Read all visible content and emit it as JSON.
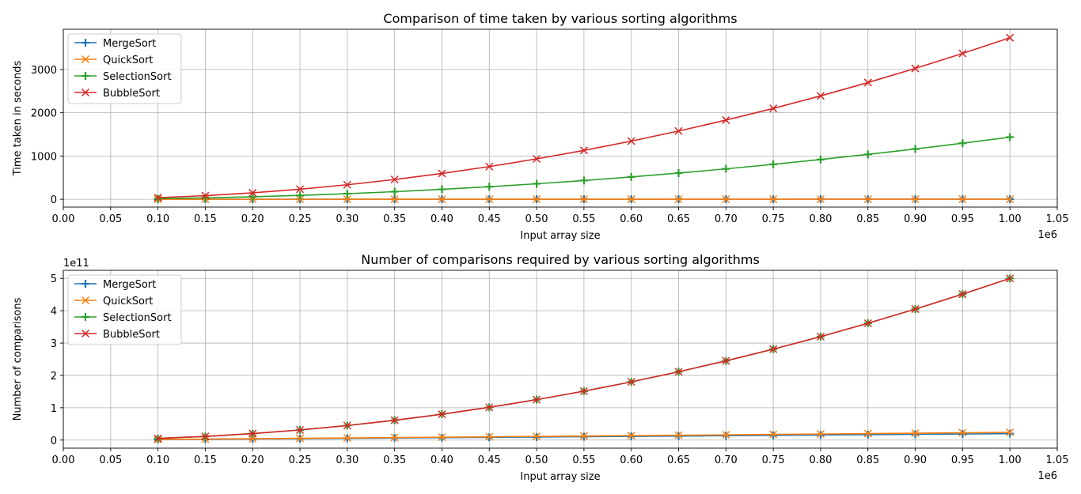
{
  "colors": {
    "MergeSort": "#1f77b4",
    "QuickSort": "#ff7f0e",
    "SelectionSort": "#2ca02c",
    "BubbleSort": "#d62728",
    "grid": "#b0b0b0"
  },
  "chart_data": [
    {
      "type": "line",
      "title": "Comparison of time taken by various sorting algorithms",
      "xlabel": "Input array size",
      "ylabel": "Time taken in seconds",
      "x_offset_label": "1e6",
      "y_offset_label": "",
      "xlim": [
        0,
        1050000
      ],
      "ylim": [
        -180,
        3930
      ],
      "xticks": [
        0,
        50000,
        100000,
        150000,
        200000,
        250000,
        300000,
        350000,
        400000,
        450000,
        500000,
        550000,
        600000,
        650000,
        700000,
        750000,
        800000,
        850000,
        900000,
        950000,
        1000000,
        1050000
      ],
      "xtick_labels": [
        "0.00",
        "0.05",
        "0.10",
        "0.15",
        "0.20",
        "0.25",
        "0.30",
        "0.35",
        "0.40",
        "0.45",
        "0.50",
        "0.55",
        "0.60",
        "0.65",
        "0.70",
        "0.75",
        "0.80",
        "0.85",
        "0.90",
        "0.95",
        "1.00",
        "1.05"
      ],
      "yticks": [
        0,
        1000,
        2000,
        3000
      ],
      "ytick_labels": [
        "0",
        "1000",
        "2000",
        "3000"
      ],
      "grid": true,
      "legend_position": "top-left",
      "x": [
        100000,
        150000,
        200000,
        250000,
        300000,
        350000,
        400000,
        450000,
        500000,
        550000,
        600000,
        650000,
        700000,
        750000,
        800000,
        850000,
        900000,
        950000,
        1000000
      ],
      "series": [
        {
          "name": "MergeSort",
          "marker": "plus",
          "values": [
            0.3,
            0.5,
            0.7,
            0.9,
            1.1,
            1.3,
            1.5,
            1.7,
            1.9,
            2.1,
            2.3,
            2.5,
            2.7,
            2.9,
            3.1,
            3.3,
            3.5,
            3.7,
            3.9
          ]
        },
        {
          "name": "QuickSort",
          "marker": "x",
          "values": [
            0.2,
            0.3,
            0.4,
            0.5,
            0.6,
            0.7,
            0.8,
            0.9,
            1.0,
            1.1,
            1.2,
            1.3,
            1.4,
            1.5,
            1.6,
            1.7,
            1.8,
            1.9,
            2.0
          ]
        },
        {
          "name": "SelectionSort",
          "marker": "plus",
          "values": [
            14,
            32,
            58,
            90,
            130,
            176,
            230,
            291,
            359,
            434,
            517,
            607,
            704,
            808,
            919,
            1038,
            1163,
            1296,
            1436
          ]
        },
        {
          "name": "BubbleSort",
          "marker": "x",
          "values": [
            37,
            84,
            150,
            233,
            336,
            457,
            597,
            756,
            934,
            1130,
            1345,
            1578,
            1830,
            2100,
            2390,
            2698,
            3025,
            3370,
            3735
          ]
        }
      ]
    },
    {
      "type": "line",
      "title": "Number of comparisons required by various sorting algorithms",
      "xlabel": "Input array size",
      "ylabel": "Number of comparisons",
      "x_offset_label": "1e6",
      "y_offset_label": "1e11",
      "xlim": [
        0,
        1050000
      ],
      "ylim": [
        -0.25,
        5.25
      ],
      "xticks": [
        0,
        50000,
        100000,
        150000,
        200000,
        250000,
        300000,
        350000,
        400000,
        450000,
        500000,
        550000,
        600000,
        650000,
        700000,
        750000,
        800000,
        850000,
        900000,
        950000,
        1000000,
        1050000
      ],
      "xtick_labels": [
        "0.00",
        "0.05",
        "0.10",
        "0.15",
        "0.20",
        "0.25",
        "0.30",
        "0.35",
        "0.40",
        "0.45",
        "0.50",
        "0.55",
        "0.60",
        "0.65",
        "0.70",
        "0.75",
        "0.80",
        "0.85",
        "0.90",
        "0.95",
        "1.00",
        "1.05"
      ],
      "yticks": [
        0,
        1,
        2,
        3,
        4,
        5
      ],
      "ytick_labels": [
        "0",
        "1",
        "2",
        "3",
        "4",
        "5"
      ],
      "grid": true,
      "legend_position": "top-left",
      "x": [
        100000,
        150000,
        200000,
        250000,
        300000,
        350000,
        400000,
        450000,
        500000,
        550000,
        600000,
        650000,
        700000,
        750000,
        800000,
        850000,
        900000,
        950000,
        1000000
      ],
      "series": [
        {
          "name": "MergeSort",
          "marker": "plus",
          "values": [
            0.0167,
            0.0258,
            0.0352,
            0.0448,
            0.0546,
            0.0645,
            0.0745,
            0.0845,
            0.0947,
            0.1049,
            0.1152,
            0.1255,
            0.1359,
            0.1463,
            0.1568,
            0.1673,
            0.1778,
            0.1884,
            0.199
          ]
        },
        {
          "name": "QuickSort",
          "marker": "x",
          "values": [
            0.02,
            0.031,
            0.042,
            0.054,
            0.065,
            0.077,
            0.089,
            0.101,
            0.113,
            0.125,
            0.137,
            0.15,
            0.162,
            0.175,
            0.187,
            0.2,
            0.213,
            0.226,
            0.239
          ]
        },
        {
          "name": "SelectionSort",
          "marker": "plus",
          "values": [
            0.05,
            0.1125,
            0.2,
            0.3125,
            0.45,
            0.6125,
            0.8,
            1.0125,
            1.25,
            1.5125,
            1.8,
            2.1125,
            2.45,
            2.8125,
            3.2,
            3.6125,
            4.05,
            4.5125,
            5.0
          ]
        },
        {
          "name": "BubbleSort",
          "marker": "x",
          "values": [
            0.05,
            0.1125,
            0.2,
            0.3125,
            0.45,
            0.6125,
            0.8,
            1.0125,
            1.25,
            1.5125,
            1.8,
            2.1125,
            2.45,
            2.8125,
            3.2,
            3.6125,
            4.05,
            4.5125,
            5.0
          ]
        }
      ]
    }
  ]
}
